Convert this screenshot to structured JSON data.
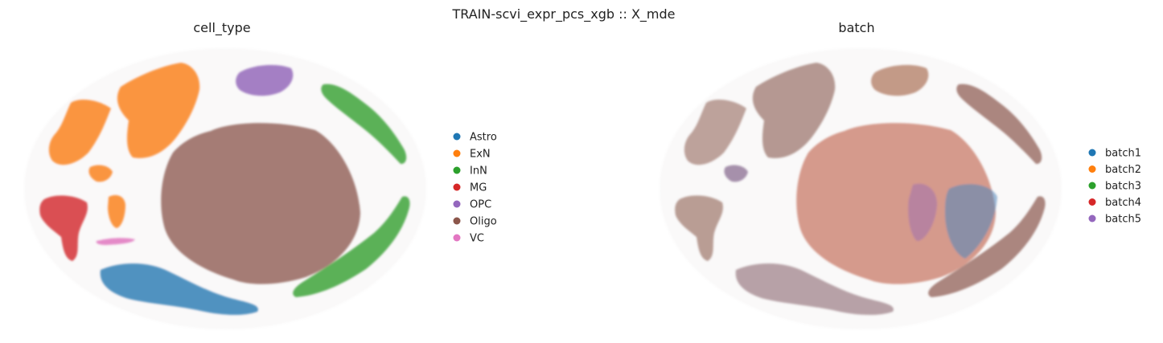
{
  "suptitle": "TRAIN-scvi_expr_pcs_xgb :: X_mde",
  "chart_data": [
    {
      "type": "scatter",
      "title": "cell_type",
      "xlabel": "",
      "ylabel": "",
      "grid": false,
      "axes_visible": false,
      "legend_position": "right",
      "series": [
        {
          "name": "Astro",
          "color": "#1f77b4"
        },
        {
          "name": "ExN",
          "color": "#ff7f0e"
        },
        {
          "name": "InN",
          "color": "#2ca02c"
        },
        {
          "name": "MG",
          "color": "#d62728"
        },
        {
          "name": "OPC",
          "color": "#9467bd"
        },
        {
          "name": "Oligo",
          "color": "#8c564b"
        },
        {
          "name": "VC",
          "color": "#e377c2"
        }
      ]
    },
    {
      "type": "scatter",
      "title": "batch",
      "xlabel": "",
      "ylabel": "",
      "grid": false,
      "axes_visible": false,
      "legend_position": "right",
      "series": [
        {
          "name": "batch1",
          "color": "#1f77b4"
        },
        {
          "name": "batch2",
          "color": "#ff7f0e"
        },
        {
          "name": "batch3",
          "color": "#2ca02c"
        },
        {
          "name": "batch4",
          "color": "#d62728"
        },
        {
          "name": "batch5",
          "color": "#9467bd"
        }
      ]
    }
  ]
}
